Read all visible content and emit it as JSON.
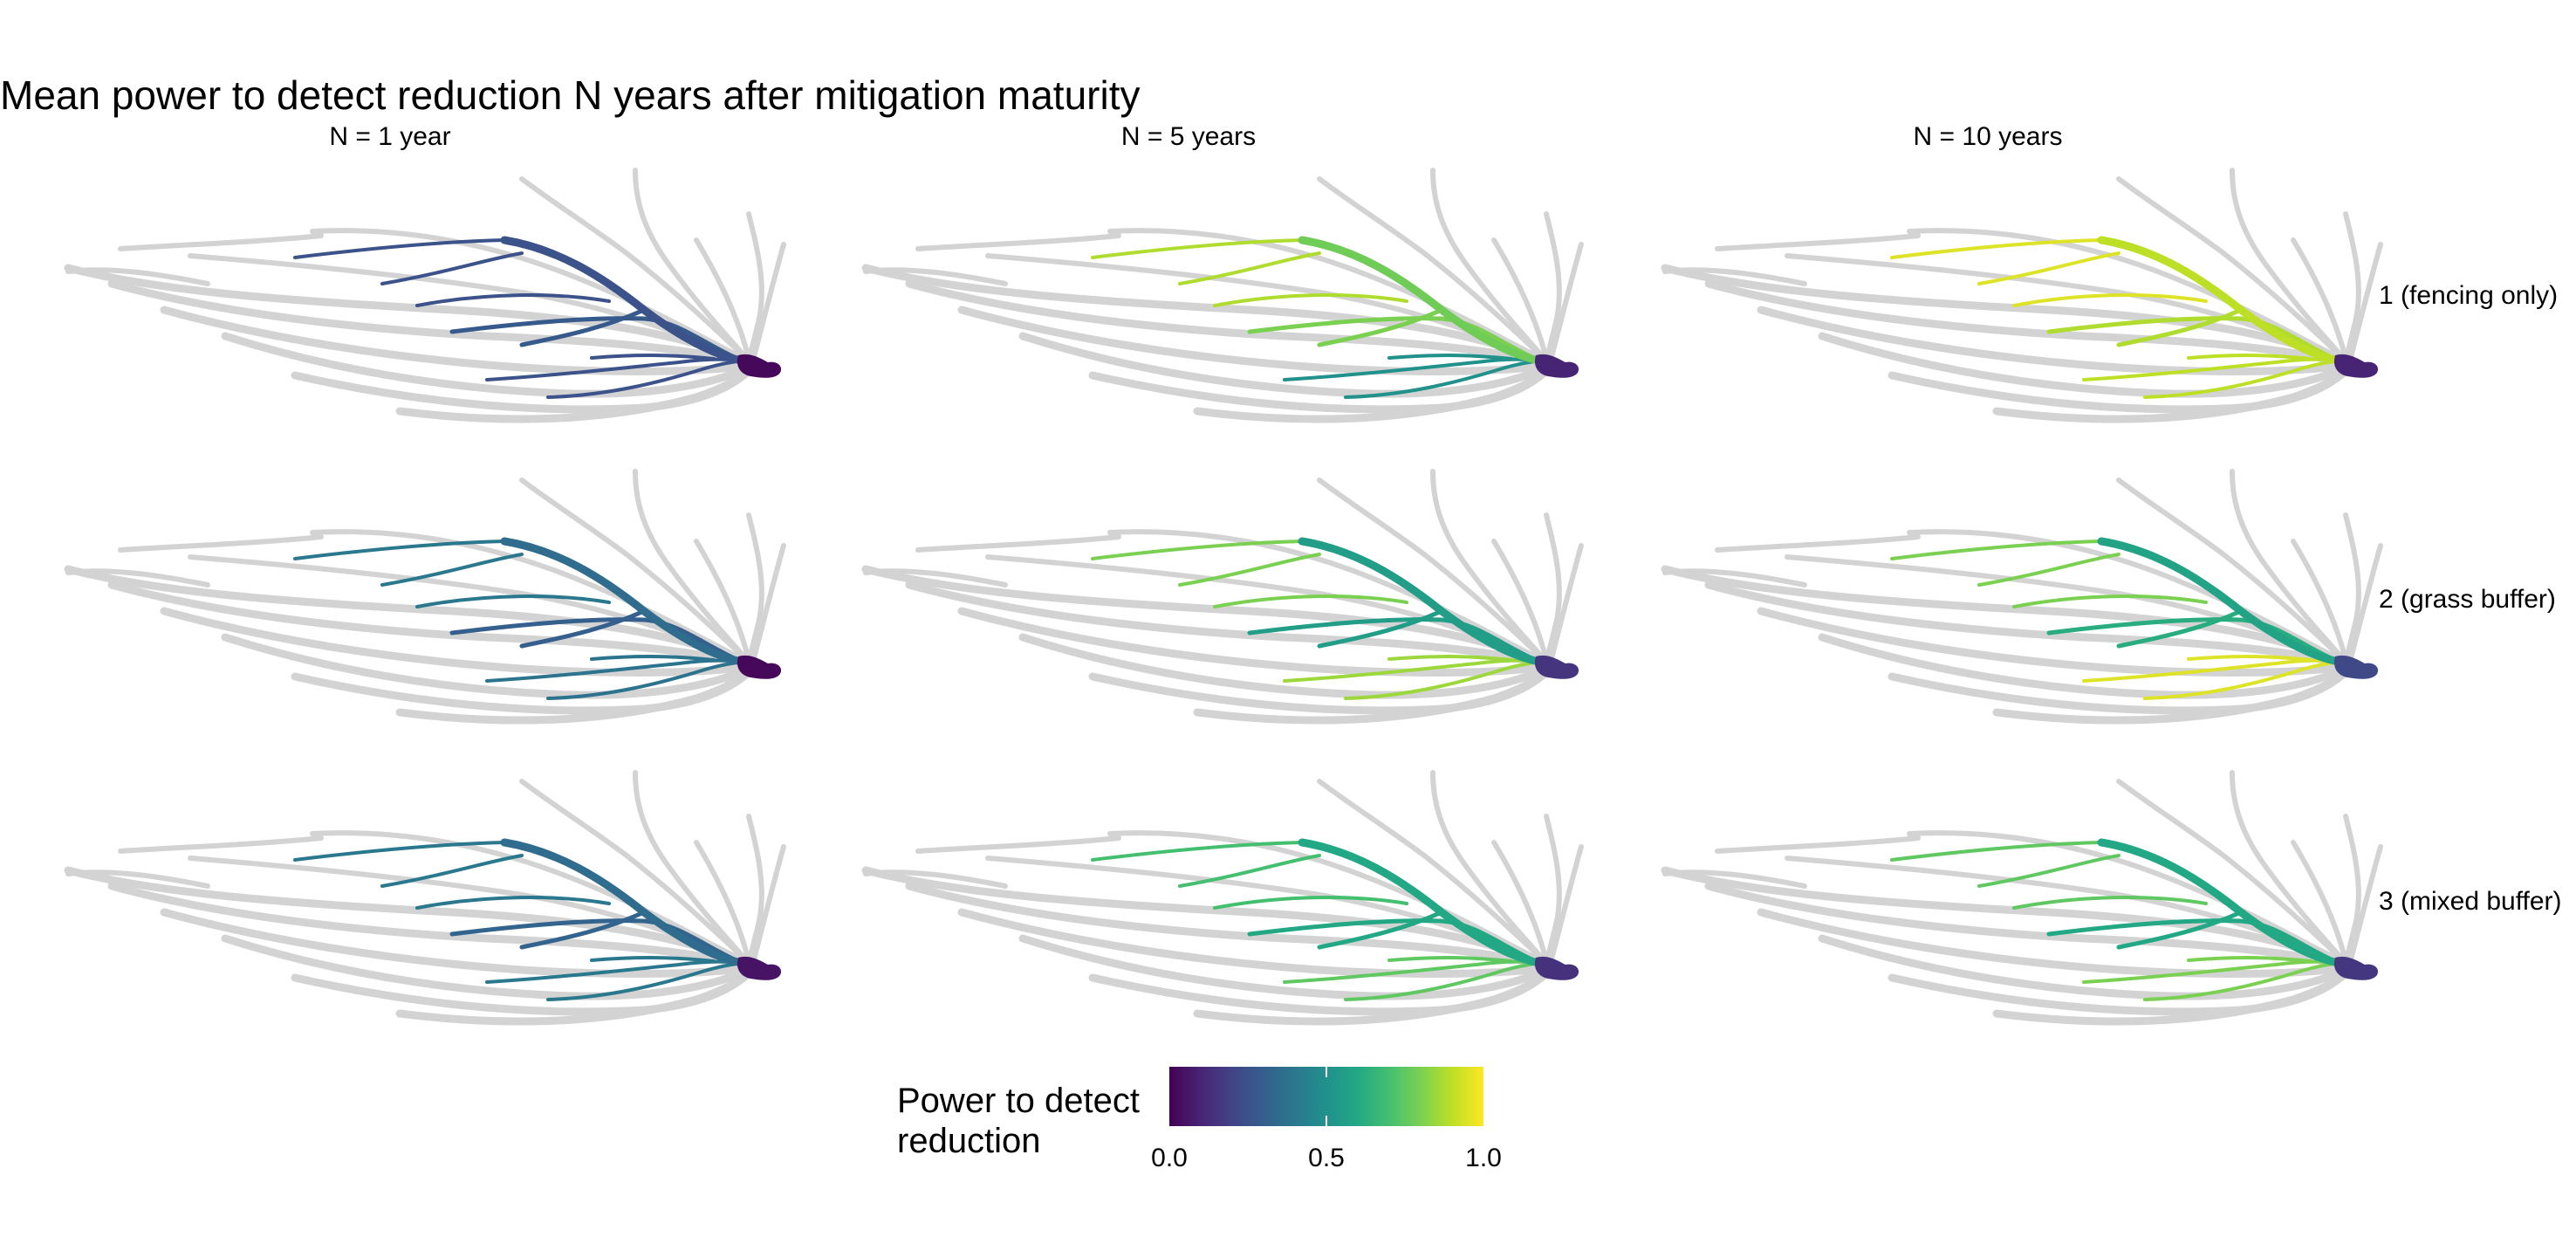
{
  "chart_data": {
    "type": "heatmap",
    "title": "Mean power to detect reduction N years after mitigation maturity",
    "columns": [
      "N = 1 year",
      "N = 5 years",
      "N = 10 years"
    ],
    "rows": [
      "1 (fencing only)",
      "2 (grass buffer)",
      "3 (mixed buffer)"
    ],
    "legend": {
      "title_lines": [
        "Power to detect",
        "reduction"
      ],
      "ticks": [
        "0.0",
        "0.5",
        "1.0"
      ],
      "range": [
        0,
        1
      ],
      "palette": "viridis",
      "placement": "bottom"
    },
    "panels": [
      [
        {
          "main": 0.25,
          "upper_branches": 0.25,
          "lower_branches": 0.25,
          "mid_branches": 0.28,
          "outlet": 0.02
        },
        {
          "main": 0.78,
          "upper_branches": 0.88,
          "lower_branches": 0.5,
          "mid_branches": 0.8,
          "outlet": 0.1
        },
        {
          "main": 0.9,
          "upper_branches": 0.95,
          "lower_branches": 0.9,
          "mid_branches": 0.88,
          "outlet": 0.1
        }
      ],
      [
        {
          "main": 0.35,
          "upper_branches": 0.4,
          "lower_branches": 0.38,
          "mid_branches": 0.3,
          "outlet": 0.02
        },
        {
          "main": 0.55,
          "upper_branches": 0.8,
          "lower_branches": 0.85,
          "mid_branches": 0.55,
          "outlet": 0.15
        },
        {
          "main": 0.58,
          "upper_branches": 0.8,
          "lower_branches": 0.95,
          "mid_branches": 0.62,
          "outlet": 0.22
        }
      ],
      [
        {
          "main": 0.35,
          "upper_branches": 0.4,
          "lower_branches": 0.4,
          "mid_branches": 0.32,
          "outlet": 0.05
        },
        {
          "main": 0.6,
          "upper_branches": 0.7,
          "lower_branches": 0.75,
          "mid_branches": 0.6,
          "outlet": 0.14
        },
        {
          "main": 0.6,
          "upper_branches": 0.75,
          "lower_branches": 0.8,
          "mid_branches": 0.6,
          "outlet": 0.16
        }
      ]
    ]
  }
}
